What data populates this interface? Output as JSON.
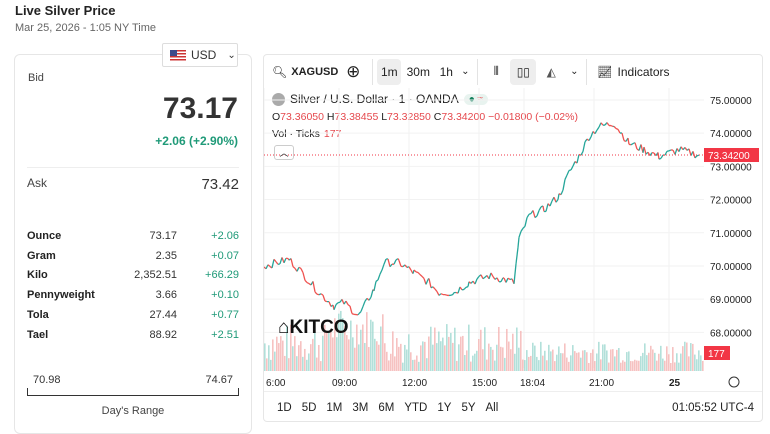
{
  "header": {
    "title": "Live Silver Price",
    "subtitle": "Mar 25, 2026 - 1:05 NY Time"
  },
  "currency": {
    "selected": "USD"
  },
  "quote": {
    "bid_label": "Bid",
    "bid": "73.17",
    "change": "+2.06 (+2.90%)",
    "ask_label": "Ask",
    "ask": "73.42"
  },
  "units": [
    {
      "name": "Ounce",
      "price": "73.17",
      "change": "+2.06"
    },
    {
      "name": "Gram",
      "price": "2.35",
      "change": "+0.07"
    },
    {
      "name": "Kilo",
      "price": "2,352.51",
      "change": "+66.29"
    },
    {
      "name": "Pennyweight",
      "price": "3.66",
      "change": "+0.10"
    },
    {
      "name": "Tola",
      "price": "27.44",
      "change": "+0.77"
    },
    {
      "name": "Tael",
      "price": "88.92",
      "change": "+2.51"
    }
  ],
  "range": {
    "low": "70.98",
    "high": "74.67",
    "label": "Day's Range"
  },
  "chart": {
    "symbol": "XAGUSD",
    "intervals": [
      "1m",
      "30m",
      "1h"
    ],
    "indicators_label": "Indicators",
    "legend_title": "Silver / U.S. Dollar · 1 · OANDA",
    "ohlc": {
      "o_label": "O",
      "o": "73.36050",
      "h_label": "H",
      "h": "73.38455",
      "l_label": "L",
      "l": "73.32850",
      "c_label": "C",
      "c": "73.34200",
      "chg": "−0.01800 (−0.02%)"
    },
    "vol_label": "Vol · Ticks",
    "vol_value": "177",
    "last_price_tag": "73.34200",
    "vol_tag": "177",
    "watermark": "KITCO",
    "ranges": [
      "1D",
      "5D",
      "1M",
      "3M",
      "6M",
      "YTD",
      "1Y",
      "5Y",
      "All"
    ],
    "clock": "01:05:52 UTC-4",
    "colors": {
      "up": "#26a69a",
      "down": "#ef5350",
      "tag": "#f23645"
    }
  },
  "chart_data": {
    "type": "line",
    "title": "Silver / U.S. Dollar · 1 · OANDA",
    "yticks": [
      "75.00000",
      "74.00000",
      "73.00000",
      "72.00000",
      "71.00000",
      "70.00000",
      "69.00000",
      "68.00000"
    ],
    "ylim": [
      67.6,
      75.3
    ],
    "xticks": [
      "6:00",
      "09:00",
      "12:00",
      "15:00",
      "18:04",
      "21:00",
      "25"
    ],
    "x": [
      0,
      25,
      35,
      55,
      70,
      80,
      95,
      110,
      120,
      135,
      150,
      165,
      175,
      190,
      205,
      225,
      240,
      250,
      255,
      265,
      280,
      295,
      305,
      315,
      325,
      335,
      350,
      365,
      380,
      395,
      415,
      435
    ],
    "values": [
      70.0,
      70.2,
      69.9,
      69.2,
      68.8,
      68.9,
      68.5,
      69.3,
      70.1,
      70.1,
      69.8,
      69.5,
      69.2,
      69.2,
      69.5,
      69.7,
      69.6,
      69.5,
      70.8,
      71.5,
      71.7,
      72.1,
      72.8,
      73.3,
      73.9,
      74.2,
      74.3,
      73.7,
      73.5,
      73.3,
      73.5,
      73.34
    ]
  }
}
